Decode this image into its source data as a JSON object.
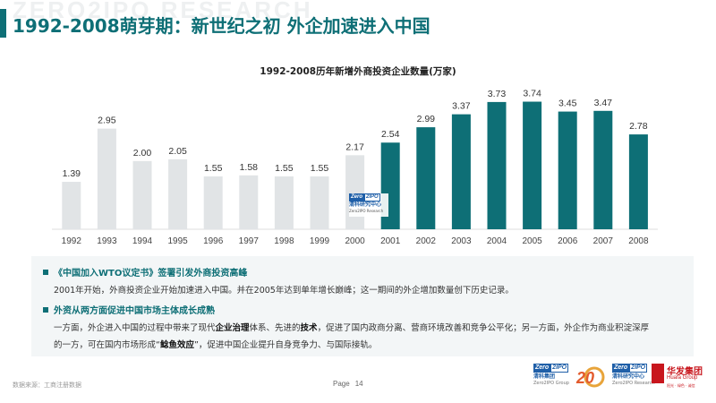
{
  "header": {
    "watermark": "ZERO2IPO RESEARCH",
    "title": "1992-2008萌芽期：新世纪之初 外企加速进入中国"
  },
  "chart_data": {
    "type": "bar",
    "title": "1992-2008历年新增外商投资企业数量(万家)",
    "categories": [
      "1992",
      "1993",
      "1994",
      "1995",
      "1996",
      "1997",
      "1998",
      "1999",
      "2000",
      "2001",
      "2002",
      "2003",
      "2004",
      "2005",
      "2006",
      "2007",
      "2008"
    ],
    "values": [
      1.39,
      2.95,
      2.0,
      2.05,
      1.55,
      1.58,
      1.55,
      1.55,
      2.17,
      2.54,
      2.99,
      3.37,
      3.73,
      3.74,
      3.45,
      3.47,
      2.78
    ],
    "value_labels": [
      "1.39",
      "2.95",
      "2.00",
      "2.05",
      "1.55",
      "1.58",
      "1.55",
      "1.55",
      "2.17",
      "2.54",
      "2.99",
      "3.37",
      "3.73",
      "3.74",
      "3.45",
      "3.47",
      "2.78"
    ],
    "ylim": [
      0,
      4.2
    ],
    "grid": false,
    "highlight_from_index": 9,
    "colors": {
      "base": "#e1e4e6",
      "highlight": "#0e6f76",
      "axis": "#dddddd"
    }
  },
  "chart_logo": {
    "mark_left": "Zero",
    "mark_right": "2IPO",
    "name": "清科研究中心",
    "en": "Zero2IPO Research"
  },
  "info": {
    "heading1": "《中国加入WTO议定书》签署引发外商投资高峰",
    "para1": "2001年开始，外商投资企业开始加速进入中国。并在2005年达到单年增长巅峰；这一期间的外企增加数量创下历史记录。",
    "heading2": "外资从两方面促进中国市场主体成长成熟",
    "para2a_1": "一方面，外企进入中国的过程中带来了现代",
    "para2a_b1": "企业治理",
    "para2a_2": "体系、先进的",
    "para2a_b2": "技术",
    "para2a_3": "，促进了国内政商分离、营商环境改善和竞争公平化；另一方面，外企作为商业积淀深厚",
    "para2b_1": "的一方，可在国内市场形成“",
    "para2b_b1": "鲶鱼效应",
    "para2b_2": "”，促进中国企业提升自身竞争力、与国际接轨。"
  },
  "footer": {
    "source": "数据来源：工商注册数据",
    "page_label": "Page",
    "page_number": "14",
    "logo1_left": "Zero",
    "logo1_right": "2IPO",
    "logo1_cn": "清科集团",
    "logo1_en": "Zero2IPO Group",
    "anniv_text": "20",
    "logo3_left": "Zero",
    "logo3_right": "2IPO",
    "logo3_cn": "清科研究中心",
    "logo3_en": "Zero2IPO Research",
    "huaxing_cn": "华发集团",
    "huaxing_en": "Huafa Group",
    "huaxing_tag": "阳光 · 绿色 · 诚信"
  }
}
